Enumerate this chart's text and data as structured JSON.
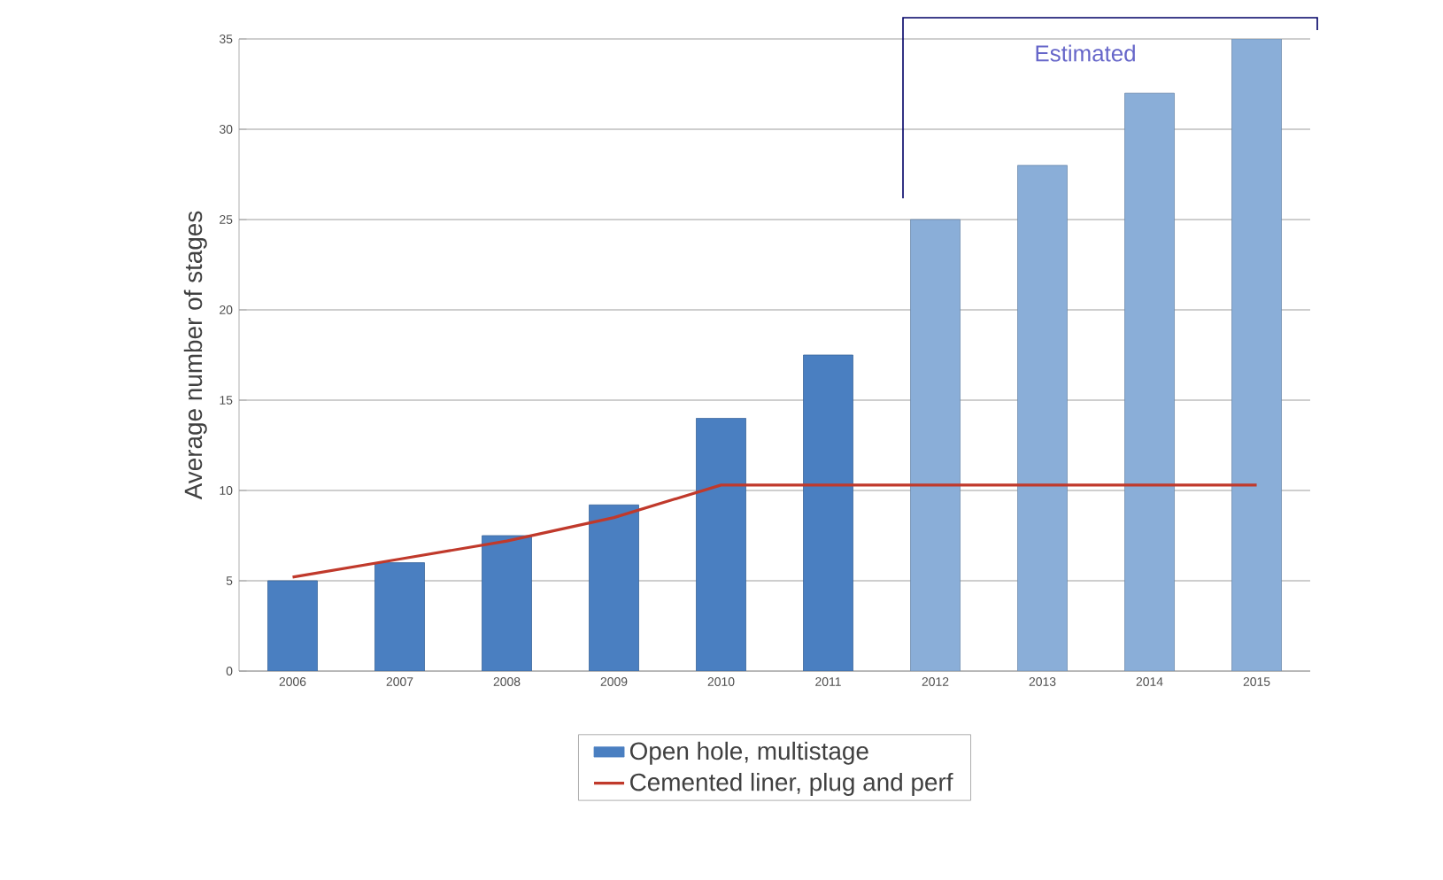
{
  "chart_data": {
    "type": "bar",
    "ylabel": "Average number of stages",
    "categories": [
      "2006",
      "2007",
      "2008",
      "2009",
      "2010",
      "2011",
      "2012",
      "2013",
      "2014",
      "2015"
    ],
    "series": [
      {
        "name": "Open hole, multistage",
        "colors": [
          "#4a7fc1",
          "#4a7fc1",
          "#4a7fc1",
          "#4a7fc1",
          "#4a7fc1",
          "#4a7fc1",
          "#8aaed8",
          "#8aaed8",
          "#8aaed8",
          "#8aaed8"
        ],
        "values": [
          5,
          6,
          7.5,
          9.2,
          14,
          17.5,
          25,
          28,
          32,
          35
        ]
      },
      {
        "name": "Cemented liner, plug and perf",
        "type": "line",
        "color": "#c0392b",
        "values": [
          5.2,
          6.2,
          7.2,
          8.5,
          10.3,
          10.3,
          10.3,
          10.3,
          10.3,
          10.3
        ]
      }
    ],
    "annotations": [
      "Estimated"
    ],
    "ylim": [
      0,
      35
    ],
    "yticks": [
      0,
      5,
      10,
      15,
      20,
      25,
      30,
      35
    ],
    "grid": "y",
    "legend": "bottom"
  }
}
